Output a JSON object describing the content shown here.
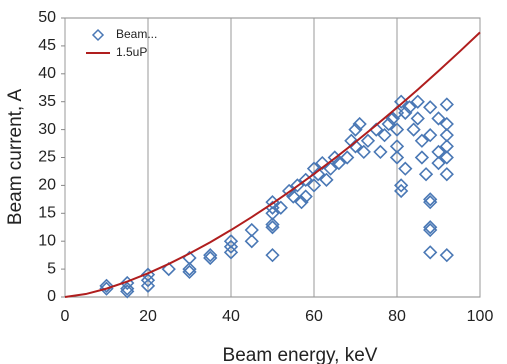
{
  "chart_data": {
    "type": "scatter",
    "xlabel": "Beam energy, keV",
    "ylabel": "Beam current, A",
    "xlim": [
      0,
      100
    ],
    "xticks": [
      0,
      20,
      40,
      60,
      80,
      100
    ],
    "ylim": [
      0,
      50
    ],
    "yticks": [
      0,
      5,
      10,
      15,
      20,
      25,
      30,
      35,
      40,
      45,
      50
    ],
    "grid": true,
    "legend": "upper left",
    "series": [
      {
        "name": "Beam...",
        "type": "scatter",
        "color": "#4a78b5",
        "x": [
          10,
          10,
          15,
          15,
          15,
          20,
          20,
          20,
          25,
          30,
          30,
          30,
          35,
          35,
          40,
          40,
          40,
          45,
          45,
          50,
          50,
          50,
          50,
          50,
          50,
          52,
          54,
          55,
          56,
          57,
          58,
          58,
          60,
          60,
          61,
          62,
          63,
          64,
          65,
          66,
          68,
          69,
          70,
          70,
          71,
          72,
          73,
          75,
          76,
          77,
          78,
          79,
          80,
          80,
          80,
          80,
          81,
          81,
          81,
          82,
          82,
          83,
          84,
          85,
          85,
          86,
          86,
          87,
          88,
          88,
          88,
          88,
          88,
          88,
          88,
          90,
          90,
          90,
          92,
          92,
          92,
          92,
          92,
          92,
          92
        ],
        "values": [
          2,
          1.5,
          2.5,
          1,
          1.5,
          4,
          3,
          2,
          5,
          7,
          5,
          4.5,
          7.5,
          7,
          10,
          9,
          8,
          12,
          10,
          17,
          16,
          15,
          13,
          12.5,
          7.5,
          16,
          19,
          18,
          20,
          17,
          21,
          18,
          20,
          23,
          22,
          24,
          21,
          23,
          25,
          24,
          25,
          28,
          30,
          27,
          31,
          26,
          28,
          30,
          26,
          29,
          31,
          32,
          33,
          30,
          27,
          25,
          35,
          20,
          19,
          33,
          23,
          34,
          30,
          35,
          32,
          28,
          25,
          22,
          34,
          29,
          17.5,
          17,
          12.5,
          12,
          8,
          32,
          26,
          24,
          34.5,
          31,
          29,
          27,
          25,
          22,
          7.5
        ]
      },
      {
        "name": "1.5uP",
        "type": "line",
        "color": "#b01e1e",
        "x": [
          0,
          5,
          10,
          15,
          20,
          25,
          30,
          35,
          40,
          45,
          50,
          55,
          60,
          65,
          70,
          75,
          80,
          85,
          90,
          95,
          100
        ],
        "values": [
          0,
          0.53,
          1.5,
          2.76,
          4.24,
          5.93,
          7.79,
          9.82,
          12.0,
          14.32,
          16.77,
          19.35,
          22.05,
          24.86,
          27.78,
          30.81,
          33.94,
          37.17,
          40.5,
          43.92,
          47.43
        ]
      }
    ]
  }
}
